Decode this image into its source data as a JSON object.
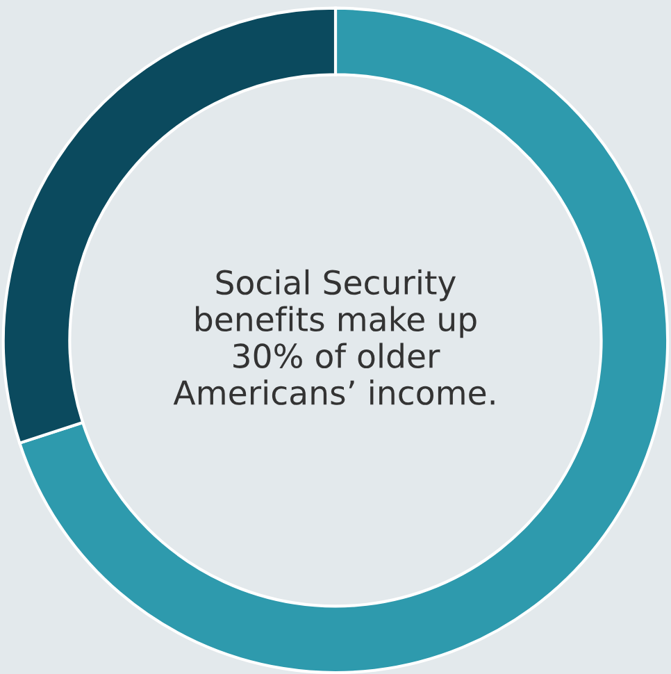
{
  "chart_data": {
    "type": "donut",
    "categories": [
      null,
      null
    ],
    "values": [
      70,
      30
    ],
    "colors": [
      "#2e9aad",
      "#0b4a5e"
    ],
    "annotations": [
      "Social Security\nbenefits make up\n30% of older\nAmericans’ income."
    ]
  }
}
